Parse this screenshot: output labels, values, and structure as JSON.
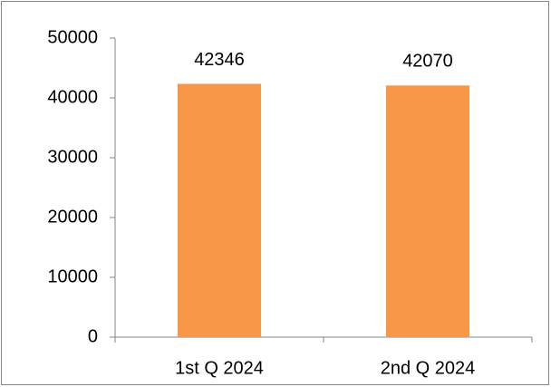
{
  "chart_data": {
    "type": "bar",
    "categories": [
      "1st Q 2024",
      "2nd Q 2024"
    ],
    "values": [
      42346,
      42070
    ],
    "color": "#f79646",
    "ylim": [
      0,
      50000
    ],
    "yticks": [
      0,
      10000,
      20000,
      30000,
      40000,
      50000
    ],
    "grid": false
  }
}
